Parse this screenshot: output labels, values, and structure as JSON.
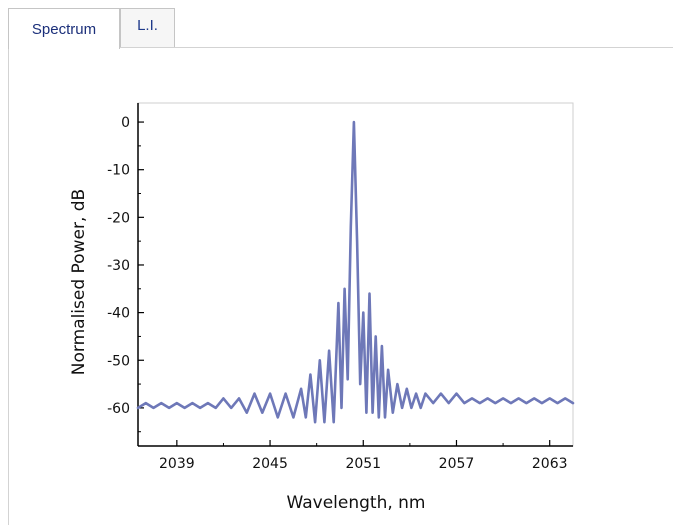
{
  "tabs": [
    {
      "label": "Spectrum",
      "active": true
    },
    {
      "label": "L.I.",
      "active": false
    }
  ],
  "chart_data": {
    "type": "line",
    "title": "",
    "xlabel": "Wavelength, nm",
    "ylabel": "Normalised Power, dB",
    "xlim": [
      2036.5,
      2064.5
    ],
    "ylim": [
      -68,
      4
    ],
    "xticks": [
      2039,
      2045,
      2051,
      2057,
      2063
    ],
    "yticks": [
      0,
      -10,
      -20,
      -30,
      -40,
      -50,
      -60
    ],
    "line_color": "#6e78b8",
    "grid": false,
    "series": [
      {
        "x": [
          2036.5,
          2037.0,
          2037.5,
          2038.0,
          2038.5,
          2039.0,
          2039.5,
          2040.0,
          2040.5,
          2041.0,
          2041.5,
          2042.0,
          2042.5,
          2043.0,
          2043.5,
          2044.0,
          2044.5,
          2045.0,
          2045.5,
          2046.0,
          2046.5,
          2047.0,
          2047.3,
          2047.6,
          2047.9,
          2048.2,
          2048.5,
          2048.8,
          2049.1,
          2049.4,
          2049.6,
          2049.8,
          2050.0,
          2050.2,
          2050.4,
          2050.6,
          2050.8,
          2051.0,
          2051.2,
          2051.4,
          2051.6,
          2051.8,
          2052.0,
          2052.2,
          2052.4,
          2052.6,
          2052.9,
          2053.2,
          2053.5,
          2053.8,
          2054.1,
          2054.4,
          2054.7,
          2055.0,
          2055.5,
          2056.0,
          2056.5,
          2057.0,
          2057.5,
          2058.0,
          2058.5,
          2059.0,
          2059.5,
          2060.0,
          2060.5,
          2061.0,
          2061.5,
          2062.0,
          2062.5,
          2063.0,
          2063.5,
          2064.0,
          2064.5
        ],
        "y": [
          -60,
          -59,
          -60,
          -59,
          -60,
          -59,
          -60,
          -59,
          -60,
          -59,
          -60,
          -58,
          -60,
          -58,
          -61,
          -57,
          -61,
          -57,
          -62,
          -57,
          -62,
          -56,
          -62,
          -53,
          -63,
          -50,
          -63,
          -48,
          -63,
          -38,
          -60,
          -35,
          -54,
          -22,
          0,
          -25,
          -55,
          -40,
          -61,
          -36,
          -61,
          -45,
          -62,
          -47,
          -62,
          -52,
          -61,
          -55,
          -60,
          -56,
          -60,
          -57,
          -60,
          -57,
          -59,
          -57,
          -59,
          -57,
          -59,
          -58,
          -59,
          -58,
          -59,
          -58,
          -59,
          -58,
          -59,
          -58,
          -59,
          -58,
          -59,
          -58,
          -59
        ]
      }
    ]
  }
}
